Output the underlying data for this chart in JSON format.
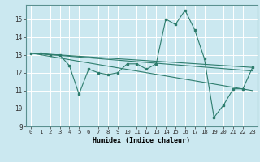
{
  "title": "",
  "xlabel": "Humidex (Indice chaleur)",
  "background_color": "#cbe8f0",
  "grid_color": "#ffffff",
  "line_color": "#2e7d6e",
  "xlim": [
    -0.5,
    23.5
  ],
  "ylim": [
    9,
    15.8
  ],
  "yticks": [
    9,
    10,
    11,
    12,
    13,
    14,
    15
  ],
  "xticks": [
    0,
    1,
    2,
    3,
    4,
    5,
    6,
    7,
    8,
    9,
    10,
    11,
    12,
    13,
    14,
    15,
    16,
    17,
    18,
    19,
    20,
    21,
    22,
    23
  ],
  "xtick_labels": [
    "0",
    "1",
    "2",
    "3",
    "4",
    "5",
    "6",
    "7",
    "8",
    "9",
    "10",
    "11",
    "12",
    "13",
    "14",
    "15",
    "16",
    "17",
    "18",
    "19",
    "20",
    "21",
    "22",
    "23"
  ],
  "main_series": [
    13.1,
    13.1,
    13.0,
    13.0,
    12.4,
    10.8,
    12.2,
    12.0,
    11.9,
    12.0,
    12.5,
    12.5,
    12.2,
    12.5,
    15.0,
    14.7,
    15.5,
    14.4,
    12.8,
    9.5,
    10.2,
    11.1,
    11.1,
    12.3
  ],
  "trend_lines": [
    {
      "x0": 0,
      "y0": 13.1,
      "x1": 23,
      "y1": 12.3
    },
    {
      "x0": 0,
      "y0": 13.1,
      "x1": 23,
      "y1": 12.1
    },
    {
      "x0": 0,
      "y0": 13.1,
      "x1": 23,
      "y1": 11.0
    }
  ]
}
